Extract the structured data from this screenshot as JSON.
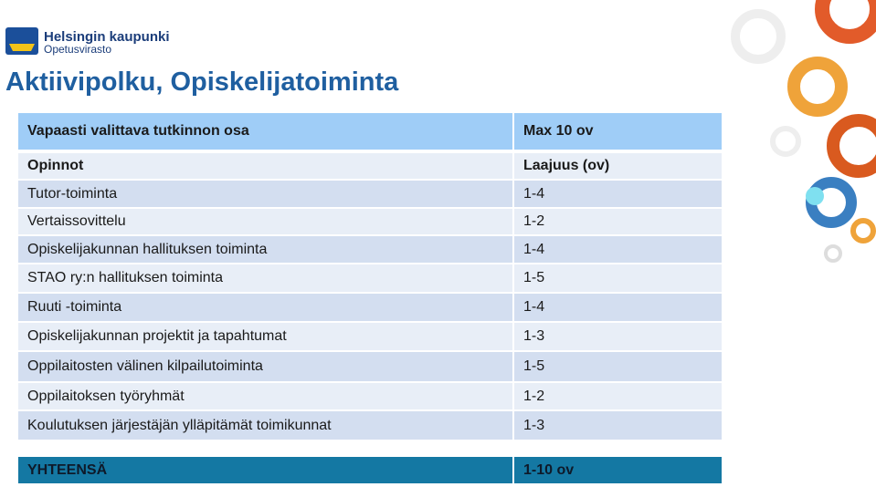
{
  "header": {
    "org": "Helsingin kaupunki",
    "unit": "Opetusvirasto"
  },
  "title": "Aktiivipolku, Opiskelijatoiminta",
  "table": {
    "header": [
      "Vapaasti valittava tutkinnon osa",
      "Max 10 ov"
    ],
    "subheader": [
      "Opinnot",
      "Laajuus (ov)"
    ],
    "rows": [
      [
        "Tutor-toiminta",
        "1-4"
      ],
      [
        "Vertaissovittelu",
        "1-2"
      ],
      [
        "Opiskelijakunnan hallituksen toiminta",
        "1-4"
      ],
      [
        "STAO ry:n hallituksen toiminta",
        "1-5"
      ],
      [
        "Ruuti -toiminta",
        "1-4"
      ],
      [
        "Opiskelijakunnan projektit ja tapahtumat",
        "1-3"
      ],
      [
        "Oppilaitosten välinen kilpailutoiminta",
        "1-5"
      ],
      [
        "Oppilaitoksen työryhmät",
        "1-2"
      ],
      [
        "Koulutuksen järjestäjän ylläpitämät toimikunnat",
        "1-3"
      ]
    ],
    "total": [
      "YHTEENSÄ",
      "1-10 ov"
    ]
  }
}
